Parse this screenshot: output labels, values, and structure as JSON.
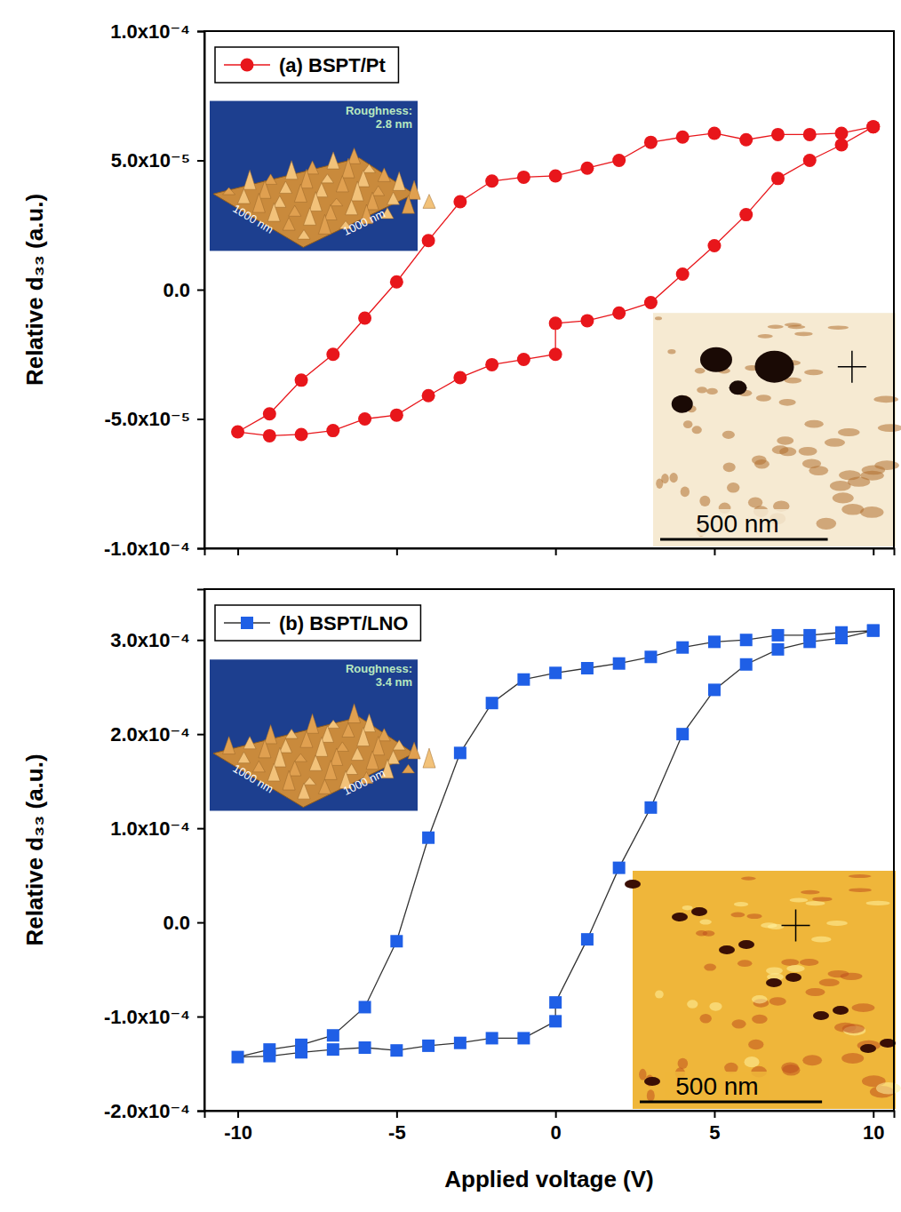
{
  "chart_data": [
    {
      "type": "line",
      "y_label": "Relative d₃₃ (a.u.)",
      "xlim": [
        -11.05,
        10.65
      ],
      "xticks": [
        -10,
        -5,
        0,
        5,
        10
      ],
      "ylim": [
        -0.0001,
        0.0001
      ],
      "yticks": [
        {
          "value": -0.0001,
          "label": "-1.0x10⁻⁴"
        },
        {
          "value": -5e-05,
          "label": "-5.0x10⁻⁵"
        },
        {
          "value": 0,
          "label": "0.0"
        },
        {
          "value": 5e-05,
          "label": "5.0x10⁻⁵"
        },
        {
          "value": 0.0001,
          "label": "1.0x10⁻⁴"
        }
      ],
      "tick_labels": "y",
      "legend": "upper left",
      "series": [
        {
          "name": "(a) BSPT/Pt",
          "color": "#e8161b",
          "marker": "circle",
          "x": [
            10,
            9,
            8,
            7,
            6,
            5,
            4,
            3,
            2,
            1,
            0,
            -1,
            -2,
            -3,
            -4,
            -5,
            -6,
            -7,
            -8,
            -9,
            -10,
            -9,
            -8,
            -7,
            -6,
            -5,
            -4,
            -3,
            -2,
            -1,
            0,
            0,
            1,
            2,
            3,
            4,
            5,
            6,
            7,
            8,
            9,
            10
          ],
          "values": [
            6.3e-05,
            6.05e-05,
            6e-05,
            6e-05,
            5.8e-05,
            6.05e-05,
            5.9e-05,
            5.7e-05,
            5e-05,
            4.7e-05,
            4.4e-05,
            4.35e-05,
            4.2e-05,
            3.4e-05,
            1.9e-05,
            3e-06,
            -1.1e-05,
            -2.5e-05,
            -3.5e-05,
            -4.8e-05,
            -5.5e-05,
            -5.65e-05,
            -5.6e-05,
            -5.45e-05,
            -5e-05,
            -4.85e-05,
            -4.1e-05,
            -3.4e-05,
            -2.9e-05,
            -2.7e-05,
            -2.5e-05,
            -1.3e-05,
            -1.2e-05,
            -9e-06,
            -5e-06,
            6e-06,
            1.7e-05,
            2.9e-05,
            4.3e-05,
            5e-05,
            5.6e-05,
            6.3e-05
          ]
        }
      ],
      "annotations": [
        "Roughness:",
        "2.8 nm",
        "1000 nm",
        "1000 nm",
        "500 nm"
      ]
    },
    {
      "type": "line",
      "y_label": "Relative d₃₃ (a.u.)",
      "x_label": "Applied voltage (V)",
      "xlim": [
        -11.05,
        10.65
      ],
      "xticks": [
        -10,
        -5,
        0,
        5,
        10
      ],
      "ylim": [
        -0.0002,
        0.000354
      ],
      "yticks": [
        {
          "value": -0.0002,
          "label": "-2.0x10⁻⁴"
        },
        {
          "value": -0.0001,
          "label": "-1.0x10⁻⁴"
        },
        {
          "value": 0,
          "label": "0.0"
        },
        {
          "value": 0.0001,
          "label": "1.0x10⁻⁴"
        },
        {
          "value": 0.0002,
          "label": "2.0x10⁻⁴"
        },
        {
          "value": 0.0003,
          "label": "3.0x10⁻⁴"
        }
      ],
      "legend": "upper left",
      "series": [
        {
          "name": "(b) BSPT/LNO",
          "color": "#1f5fe6",
          "marker": "square",
          "x": [
            10,
            9,
            8,
            7,
            6,
            5,
            4,
            3,
            2,
            1,
            0,
            -1,
            -2,
            -3,
            -4,
            -5,
            -6,
            -7,
            -8,
            -9,
            -10,
            -9,
            -8,
            -7,
            -6,
            -5,
            -4,
            -3,
            -2,
            -1,
            0,
            0,
            1,
            2,
            3,
            4,
            5,
            6,
            7,
            8,
            9,
            10
          ],
          "values": [
            0.00031,
            0.000308,
            0.000305,
            0.000305,
            0.0003,
            0.000298,
            0.000292,
            0.000282,
            0.000275,
            0.00027,
            0.000265,
            0.000258,
            0.000233,
            0.00018,
            9e-05,
            -2e-05,
            -9e-05,
            -0.00012,
            -0.00013,
            -0.000135,
            -0.000143,
            -0.000142,
            -0.000138,
            -0.000135,
            -0.000133,
            -0.000136,
            -0.000131,
            -0.000128,
            -0.000123,
            -0.000123,
            -0.000105,
            -8.5e-05,
            -1.8e-05,
            5.8e-05,
            0.000122,
            0.0002,
            0.000247,
            0.000274,
            0.00029,
            0.000298,
            0.000302,
            0.00031
          ]
        }
      ],
      "annotations": [
        "Roughness:",
        "3.4 nm",
        "1000 nm",
        "1000 nm",
        "500 nm"
      ]
    }
  ]
}
